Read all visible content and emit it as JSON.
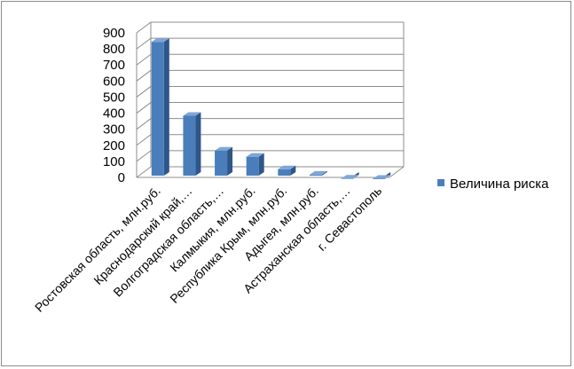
{
  "chart_data": {
    "type": "bar",
    "categories": [
      "Ростовская область, млн.руб.",
      "Краснодарский край,…",
      "Волгоградская область,…",
      "Калмыкия, млн.руб.",
      "Республика Крым, млн.руб.",
      "Адыгея, млн.руб.",
      "Астраханская область,…",
      "г. Севастополь"
    ],
    "series": [
      {
        "name": "Величина риска",
        "values": [
          855,
          395,
          178,
          140,
          62,
          28,
          4,
          3
        ]
      }
    ],
    "yticks": [
      "0",
      "100",
      "200",
      "300",
      "400",
      "500",
      "600",
      "700",
      "800",
      "900"
    ],
    "ylim": [
      0,
      900
    ],
    "grid": true,
    "legend_position": "right",
    "colors": {
      "bar_front": "#4a7ebb",
      "bar_side": "#2f5689",
      "bar_top": "#7ea6d8",
      "grid": "#8c8c8c"
    }
  }
}
